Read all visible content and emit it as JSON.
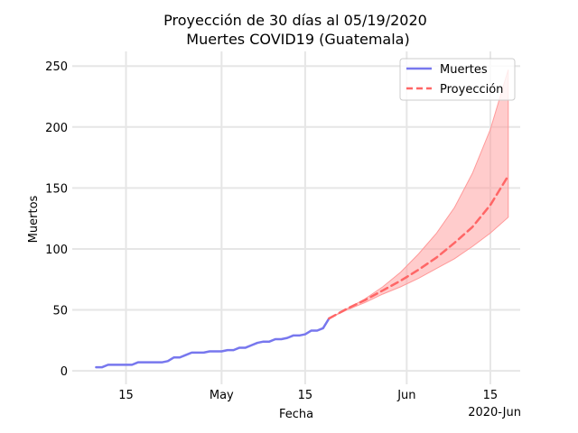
{
  "chart_data": {
    "type": "line",
    "title_line1": "Proyección de 30 días al 05/19/2020",
    "title_line2": "Muertes COVID19 (Guatemala)",
    "xlabel": "Fecha",
    "ylabel": "Muertos",
    "x_offset_label": "2020-Jun",
    "xlim": [
      "2020-04-06",
      "2020-06-20"
    ],
    "ylim": [
      -11,
      262
    ],
    "grid": true,
    "legend_position": "top-right",
    "x_ticks": [
      {
        "date": "2020-04-15",
        "label": "15"
      },
      {
        "date": "2020-05-01",
        "label": "May"
      },
      {
        "date": "2020-05-15",
        "label": "15"
      },
      {
        "date": "2020-06-01",
        "label": "Jun"
      },
      {
        "date": "2020-06-15",
        "label": "15"
      }
    ],
    "y_ticks": [
      0,
      50,
      100,
      150,
      200,
      250
    ],
    "series": [
      {
        "name": "Muertes",
        "color": "#7777ee",
        "style": "solid",
        "points": [
          [
            "2020-04-10",
            3
          ],
          [
            "2020-04-11",
            3
          ],
          [
            "2020-04-12",
            5
          ],
          [
            "2020-04-13",
            5
          ],
          [
            "2020-04-14",
            5
          ],
          [
            "2020-04-15",
            5
          ],
          [
            "2020-04-16",
            5
          ],
          [
            "2020-04-17",
            7
          ],
          [
            "2020-04-18",
            7
          ],
          [
            "2020-04-19",
            7
          ],
          [
            "2020-04-20",
            7
          ],
          [
            "2020-04-21",
            7
          ],
          [
            "2020-04-22",
            8
          ],
          [
            "2020-04-23",
            11
          ],
          [
            "2020-04-24",
            11
          ],
          [
            "2020-04-25",
            13
          ],
          [
            "2020-04-26",
            15
          ],
          [
            "2020-04-27",
            15
          ],
          [
            "2020-04-28",
            15
          ],
          [
            "2020-04-29",
            16
          ],
          [
            "2020-04-30",
            16
          ],
          [
            "2020-05-01",
            16
          ],
          [
            "2020-05-02",
            17
          ],
          [
            "2020-05-03",
            17
          ],
          [
            "2020-05-04",
            19
          ],
          [
            "2020-05-05",
            19
          ],
          [
            "2020-05-06",
            21
          ],
          [
            "2020-05-07",
            23
          ],
          [
            "2020-05-08",
            24
          ],
          [
            "2020-05-09",
            24
          ],
          [
            "2020-05-10",
            26
          ],
          [
            "2020-05-11",
            26
          ],
          [
            "2020-05-12",
            27
          ],
          [
            "2020-05-13",
            29
          ],
          [
            "2020-05-14",
            29
          ],
          [
            "2020-05-15",
            30
          ],
          [
            "2020-05-16",
            33
          ],
          [
            "2020-05-17",
            33
          ],
          [
            "2020-05-18",
            35
          ],
          [
            "2020-05-19",
            43
          ]
        ]
      },
      {
        "name": "Proyección",
        "color": "#ff6666",
        "style": "dashed",
        "points": [
          [
            "2020-05-19",
            43
          ],
          [
            "2020-05-22",
            51
          ],
          [
            "2020-05-25",
            58
          ],
          [
            "2020-05-28",
            66
          ],
          [
            "2020-05-31",
            74
          ],
          [
            "2020-06-03",
            83
          ],
          [
            "2020-06-06",
            93
          ],
          [
            "2020-06-09",
            105
          ],
          [
            "2020-06-12",
            118
          ],
          [
            "2020-06-15",
            136
          ],
          [
            "2020-06-18",
            160
          ]
        ]
      }
    ],
    "confidence_band": {
      "color": "#ff9999",
      "upper": [
        [
          "2020-05-19",
          43
        ],
        [
          "2020-05-22",
          51
        ],
        [
          "2020-05-25",
          59
        ],
        [
          "2020-05-28",
          69
        ],
        [
          "2020-05-31",
          81
        ],
        [
          "2020-06-03",
          96
        ],
        [
          "2020-06-06",
          113
        ],
        [
          "2020-06-09",
          134
        ],
        [
          "2020-06-12",
          162
        ],
        [
          "2020-06-15",
          198
        ],
        [
          "2020-06-18",
          247
        ]
      ],
      "lower": [
        [
          "2020-05-19",
          43
        ],
        [
          "2020-05-22",
          50
        ],
        [
          "2020-05-25",
          56
        ],
        [
          "2020-05-28",
          63
        ],
        [
          "2020-05-31",
          69
        ],
        [
          "2020-06-03",
          76
        ],
        [
          "2020-06-06",
          84
        ],
        [
          "2020-06-09",
          92
        ],
        [
          "2020-06-12",
          102
        ],
        [
          "2020-06-15",
          113
        ],
        [
          "2020-06-18",
          126
        ]
      ]
    }
  }
}
